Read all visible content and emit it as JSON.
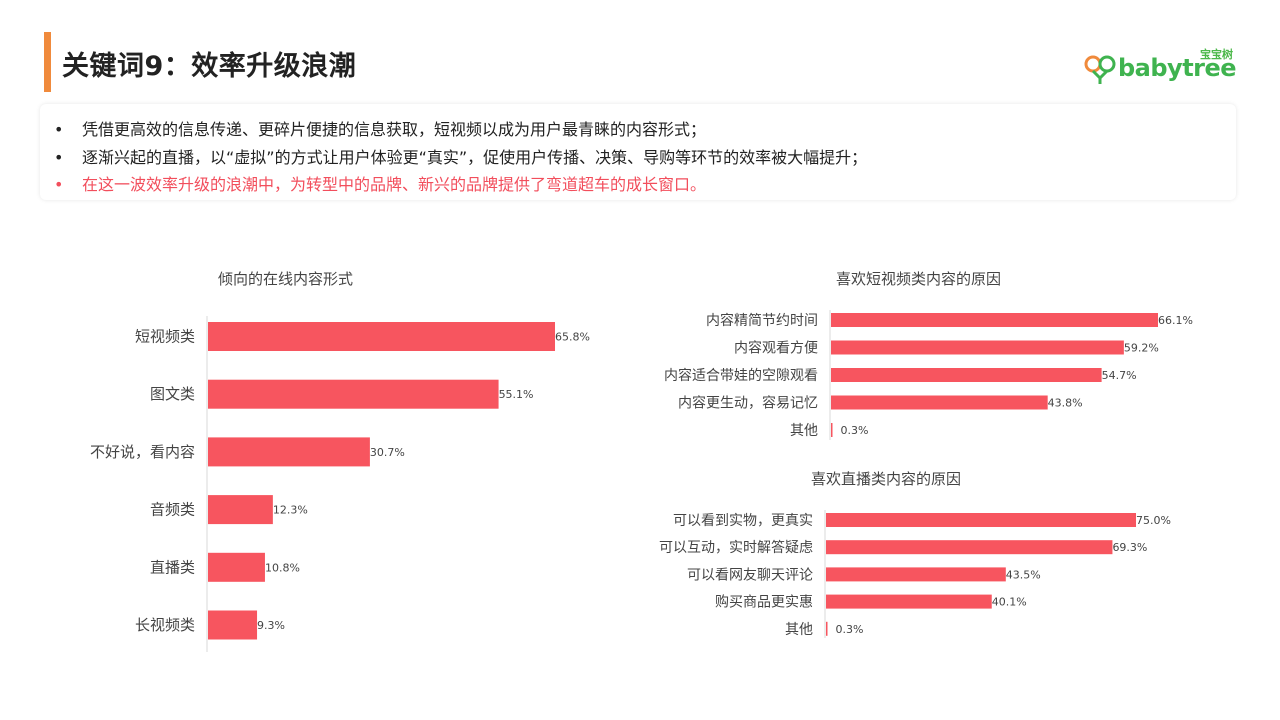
{
  "header": {
    "title": "关键词9：效率升级浪潮",
    "logo_text": "babytree",
    "logo_cn": "宝宝树"
  },
  "bullets": [
    {
      "text": "凭借更高效的信息传递、更碎片便捷的信息获取，短视频以成为用户最青睐的内容形式；",
      "highlight": false
    },
    {
      "text": "逐渐兴起的直播，以“虚拟”的方式让用户体验更“真实”，促使用户传播、决策、导购等环节的效率被大幅提升；",
      "highlight": false
    },
    {
      "text": "在这一波效率升级的浪潮中，为转型中的品牌、新兴的品牌提供了弯道超车的成长窗口。",
      "highlight": true
    }
  ],
  "bullet_marker": "•",
  "colors": {
    "bar": "#f7555f",
    "accent": "#f08a3c",
    "highlight_text": "#f24e5c",
    "logo": "#3fb34f"
  },
  "chart_data": [
    {
      "type": "bar",
      "orientation": "horizontal",
      "title": "倾向的在线内容形式",
      "categories": [
        "短视频类",
        "图文类",
        "不好说，看内容",
        "音频类",
        "直播类",
        "长视频类"
      ],
      "values": [
        65.8,
        55.1,
        30.7,
        12.3,
        10.8,
        9.3
      ],
      "value_labels": [
        "65.8%",
        "55.1%",
        "30.7%",
        "12.3%",
        "10.8%",
        "9.3%"
      ],
      "xlim": [
        0,
        70
      ]
    },
    {
      "type": "bar",
      "orientation": "horizontal",
      "title": "喜欢短视频类内容的原因",
      "categories": [
        "内容精简节约时间",
        "内容观看方便",
        "内容适合带娃的空隙观看",
        "内容更生动，容易记忆",
        "其他"
      ],
      "values": [
        66.1,
        59.2,
        54.7,
        43.8,
        0.3
      ],
      "value_labels": [
        "66.1%",
        "59.2%",
        "54.7%",
        "43.8%",
        "0.3%"
      ],
      "xlim": [
        0,
        70
      ]
    },
    {
      "type": "bar",
      "orientation": "horizontal",
      "title": "喜欢直播类内容的原因",
      "categories": [
        "可以看到实物，更真实",
        "可以互动，实时解答疑虑",
        "可以看网友聊天评论",
        "购买商品更实惠",
        "其他"
      ],
      "values": [
        75.0,
        69.3,
        43.5,
        40.1,
        0.3
      ],
      "value_labels": [
        "75.0%",
        "69.3%",
        "43.5%",
        "40.1%",
        "0.3%"
      ],
      "xlim": [
        0,
        80
      ]
    }
  ]
}
